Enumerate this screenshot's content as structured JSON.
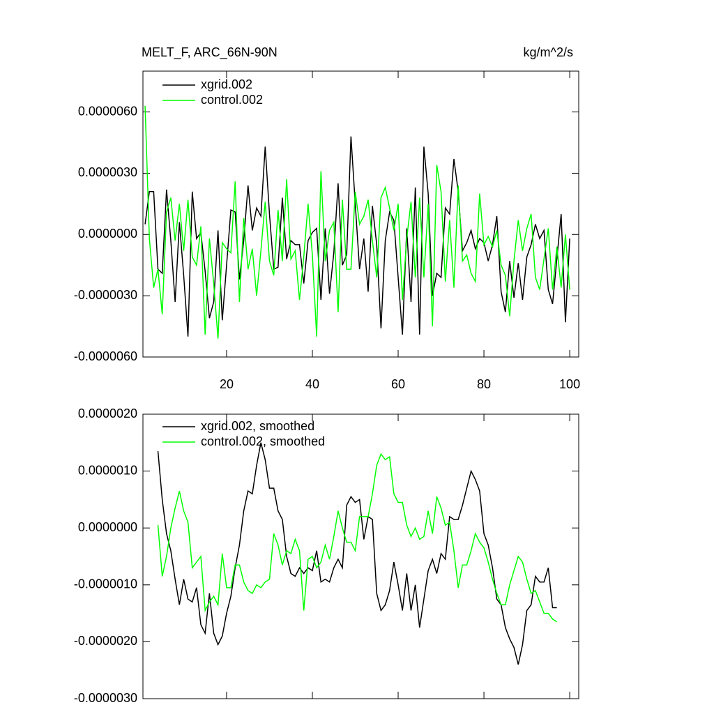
{
  "chart_data": [
    {
      "type": "line",
      "title": "MELT_F, ARC_66N-90N",
      "units": "kg/m^2/s",
      "x": [
        1,
        2,
        3,
        4,
        5,
        6,
        7,
        8,
        9,
        10,
        11,
        12,
        13,
        14,
        15,
        16,
        17,
        18,
        19,
        20,
        21,
        22,
        23,
        24,
        25,
        26,
        27,
        28,
        29,
        30,
        31,
        32,
        33,
        34,
        35,
        36,
        37,
        38,
        39,
        40,
        41,
        42,
        43,
        44,
        45,
        46,
        47,
        48,
        49,
        50,
        51,
        52,
        53,
        54,
        55,
        56,
        57,
        58,
        59,
        60,
        61,
        62,
        63,
        64,
        65,
        66,
        67,
        68,
        69,
        70,
        71,
        72,
        73,
        74,
        75,
        76,
        77,
        78,
        79,
        80,
        81,
        82,
        83,
        84,
        85,
        86,
        87,
        88,
        89,
        90,
        91,
        92,
        93,
        94,
        95,
        96,
        97,
        98,
        99,
        100
      ],
      "series": [
        {
          "name": "xgrid.002",
          "color": "#000000",
          "values": [
            5e-07,
            2.1e-06,
            2.1e-06,
            -1.7e-06,
            -1.9e-06,
            2.2e-06,
            -3e-07,
            -3.3e-06,
            6e-07,
            -2e-06,
            -5e-06,
            2.1e-06,
            -2e-07,
            1e-07,
            -1.8e-06,
            -4.1e-06,
            -3.3e-06,
            2e-07,
            -4.2e-06,
            -1.5e-06,
            1.2e-06,
            1.1e-06,
            -2.2e-06,
            -3e-07,
            2.4e-06,
            2e-07,
            1.3e-06,
            9e-07,
            4.3e-06,
            1e-06,
            -1.7e-06,
            -1.6e-06,
            1.8e-06,
            -1.2e-06,
            -3e-07,
            -5e-07,
            -5e-07,
            -2.4e-06,
            -3e-07,
            1e-07,
            3e-07,
            -3.2e-06,
            3e-07,
            -2.9e-06,
            -9e-07,
            2.5e-06,
            -1.5e-06,
            -1e-06,
            4.8e-06,
            1.5e-06,
            -1.7e-06,
            -2e-07,
            -2.8e-06,
            1.4e-06,
            -5e-07,
            -4.6e-06,
            -3e-07,
            1.1e-06,
            7e-07,
            -2.1e-06,
            -4.9e-06,
            3e-07,
            -3.3e-06,
            2.3e-06,
            -4.9e-06,
            4.3e-06,
            2e-06,
            -3e-06,
            -1.9e-06,
            -2.1e-06,
            1.3e-06,
            1e-06,
            3.7e-06,
            2.1e-06,
            -8e-07,
            -4e-07,
            2e-07,
            -7e-07,
            -2e-07,
            -4e-07,
            -1.3e-06,
            -5e-07,
            9e-07,
            -2.8e-06,
            -3.8e-06,
            -1.3e-06,
            -3.1e-06,
            -1.4e-06,
            -3.2e-06,
            -1.1e-06,
            -5e-07,
            5e-07,
            -2e-07,
            2e-07,
            -2.7e-06,
            -3.4e-06,
            -1.2e-06,
            1e-06,
            -4.3e-06,
            -2e-07
          ]
        },
        {
          "name": "control.002",
          "color": "#00ff00",
          "values": [
            6.3e-06,
            -2e-07,
            -2.6e-06,
            -1.7e-06,
            -3.9e-06,
            1.1e-06,
            1.8e-06,
            -3e-07,
            1.5e-06,
            -8e-07,
            1.7e-06,
            -1.1e-06,
            -1.5e-06,
            4e-07,
            -4.9e-06,
            -2e-07,
            -2.4e-06,
            -5.1e-06,
            -4e-07,
            -7e-07,
            -9e-07,
            2.6e-06,
            -3.3e-06,
            8e-07,
            -1.7e-06,
            -7e-07,
            -3e-06,
            -8e-07,
            1.6e-06,
            -1.3e-06,
            -2e-06,
            1.2e-06,
            -1.3e-06,
            2.7e-06,
            -1.2e-06,
            -8e-07,
            -3.2e-06,
            -1.1e-06,
            1.5e-06,
            -1e-06,
            -5e-06,
            3.1e-06,
            -1.3e-06,
            2e-07,
            6e-07,
            -3.8e-06,
            1.7e-06,
            -1.7e-06,
            -1.7e-06,
            2.1e-06,
            5e-07,
            9e-07,
            1.7e-06,
            -3e-07,
            -2.1e-06,
            1.8e-06,
            2.3e-06,
            1.3e-06,
            2e-07,
            1.5e-06,
            -3.2e-06,
            -2e-07,
            1.6e-06,
            -2.1e-06,
            1.8e-06,
            -2.1e-06,
            1.5e-06,
            -4.5e-06,
            3.4e-06,
            2.1e-06,
            -2.3e-06,
            7e-07,
            -2.6e-06,
            2.4e-06,
            -1.3e-06,
            -1e-06,
            -1.9e-06,
            -2.3e-06,
            2e-06,
            -5e-07,
            -1e-07,
            -6e-07,
            2e-07,
            -1.5e-06,
            -2e-06,
            -4e-06,
            -1.3e-06,
            7e-07,
            -8e-07,
            3e-07,
            1e-06,
            -2.1e-06,
            -2.7e-06,
            -1.2e-06,
            3e-07,
            -2.7e-06,
            -6e-07,
            -2.6e-06,
            0,
            -2.7e-06
          ]
        }
      ],
      "xlim": [
        0.5,
        102.1
      ],
      "xticks": [
        20,
        40,
        60,
        80,
        100
      ],
      "ylim": [
        -6e-06,
        8e-06
      ],
      "yticks": [
        {
          "value": -6e-06,
          "label": "-0.0000060"
        },
        {
          "value": -3e-06,
          "label": "-0.0000030"
        },
        {
          "value": 0,
          "label": "0.0000000"
        },
        {
          "value": 3e-06,
          "label": "0.0000030"
        },
        {
          "value": 6e-06,
          "label": "0.0000060"
        }
      ]
    },
    {
      "type": "line",
      "x": [
        4,
        5,
        6,
        7,
        8,
        9,
        10,
        11,
        12,
        13,
        14,
        15,
        16,
        17,
        18,
        19,
        20,
        21,
        22,
        23,
        24,
        25,
        26,
        27,
        28,
        29,
        30,
        31,
        32,
        33,
        34,
        35,
        36,
        37,
        38,
        39,
        40,
        41,
        42,
        43,
        44,
        45,
        46,
        47,
        48,
        49,
        50,
        51,
        52,
        53,
        54,
        55,
        56,
        57,
        58,
        59,
        60,
        61,
        62,
        63,
        64,
        65,
        66,
        67,
        68,
        69,
        70,
        71,
        72,
        73,
        74,
        75,
        76,
        77,
        78,
        79,
        80,
        81,
        82,
        83,
        84,
        85,
        86,
        87,
        88,
        89,
        90,
        91,
        92,
        93,
        94,
        95,
        96,
        97
      ],
      "series": [
        {
          "name": "xgrid.002, smoothed",
          "color": "#000000",
          "values": [
            1.35e-06,
            5e-07,
            -1e-07,
            -4e-07,
            -9e-07,
            -1.35e-06,
            -9e-07,
            -1.25e-06,
            -1.3e-06,
            -1.05e-06,
            -1.7e-06,
            -1.85e-06,
            -1.15e-06,
            -1.85e-06,
            -2.05e-06,
            -1.9e-06,
            -1.5e-06,
            -1.2e-06,
            -7e-07,
            -3e-07,
            3e-07,
            6.5e-07,
            6e-07,
            1.1e-06,
            1.5e-06,
            1.2e-06,
            7e-07,
            7e-07,
            3e-07,
            1.5e-07,
            -5e-07,
            -8e-07,
            -8.5e-07,
            -7e-07,
            -8e-07,
            -7e-07,
            -7.5e-07,
            -4e-07,
            -9.5e-07,
            -9e-07,
            -9.5e-07,
            -7e-07,
            -5.5e-07,
            -7e-07,
            4e-07,
            5.5e-07,
            4.5e-07,
            5e-07,
            -2e-07,
            2e-07,
            1.5e-07,
            -1.15e-06,
            -1.45e-06,
            -1.35e-06,
            -1.1e-06,
            -6e-07,
            -1e-06,
            -1.45e-06,
            -8e-07,
            -1.45e-06,
            -1e-06,
            -1.75e-06,
            -1.25e-06,
            -7.5e-07,
            -5.5e-07,
            -8e-07,
            -4.5e-07,
            -5.5e-07,
            2e-07,
            1.5e-07,
            1.5e-07,
            4e-07,
            7e-07,
            1e-06,
            8.5e-07,
            6.5e-07,
            -1e-07,
            -3e-07,
            -7e-07,
            -1.25e-06,
            -1.35e-06,
            -1.75e-06,
            -1.95e-06,
            -2.1e-06,
            -2.4e-06,
            -2.05e-06,
            -1.45e-06,
            -1.35e-06,
            -8.5e-07,
            -9.5e-07,
            -9.5e-07,
            -7e-07,
            -1.4e-06,
            -1.4e-06
          ]
        },
        {
          "name": "control.002, smoothed",
          "color": "#00ff00",
          "values": [
            5e-08,
            -8.5e-07,
            -5e-07,
            0,
            3.5e-07,
            6.5e-07,
            3e-07,
            1e-07,
            -7e-07,
            -6e-07,
            -5e-07,
            -1.45e-06,
            -1.3e-06,
            -1.2e-06,
            -1.35e-06,
            -4.5e-07,
            -1.05e-06,
            -1.05e-06,
            -6.5e-07,
            -6.5e-07,
            -9.5e-07,
            -1.1e-06,
            -1.15e-06,
            -1e-06,
            -1.05e-06,
            -9.5e-07,
            -9e-07,
            -1e-07,
            -3e-07,
            -6.5e-07,
            -4e-07,
            -4.5e-07,
            -2e-07,
            -4e-07,
            -1.45e-06,
            -5.5e-07,
            -5e-07,
            -7e-07,
            -6e-07,
            -3e-07,
            -5.5e-07,
            -1.5e-07,
            3e-07,
            0,
            -2.5e-07,
            -2.5e-07,
            -4e-07,
            2e-07,
            2e-07,
            2e-07,
            6e-07,
            1.1e-06,
            1.3e-06,
            1.2e-06,
            1.25e-06,
            6e-07,
            4.5e-07,
            4.5e-07,
            5e-08,
            -1.5e-07,
            0,
            -2e-07,
            -1.5e-07,
            3e-07,
            -1e-07,
            5.5e-07,
            3.5e-07,
            5e-08,
            1e-07,
            -4e-07,
            -1.05e-06,
            -6.5e-07,
            -6.5e-07,
            -4e-07,
            -1e-07,
            -2.5e-07,
            -3.5e-07,
            -6e-07,
            -9e-07,
            -1.15e-06,
            -1.35e-06,
            -1.35e-06,
            -1e-06,
            -7.5e-07,
            -5e-07,
            -6e-07,
            -9e-07,
            -1.15e-06,
            -1.1e-06,
            -1.3e-06,
            -1.5e-06,
            -1.5e-06,
            -1.6e-06,
            -1.65e-06
          ]
        }
      ],
      "xlim": [
        0.5,
        102.1
      ],
      "xticks": [
        20,
        40,
        60,
        80,
        100
      ],
      "ylim": [
        -3e-06,
        2e-06
      ],
      "yticks": [
        {
          "value": -3e-06,
          "label": "-0.0000030"
        },
        {
          "value": -2e-06,
          "label": "-0.0000020"
        },
        {
          "value": -1e-06,
          "label": "-0.0000010"
        },
        {
          "value": 0,
          "label": "0.0000000"
        },
        {
          "value": 1e-06,
          "label": "0.0000010"
        },
        {
          "value": 2e-06,
          "label": "0.0000020"
        }
      ]
    }
  ]
}
